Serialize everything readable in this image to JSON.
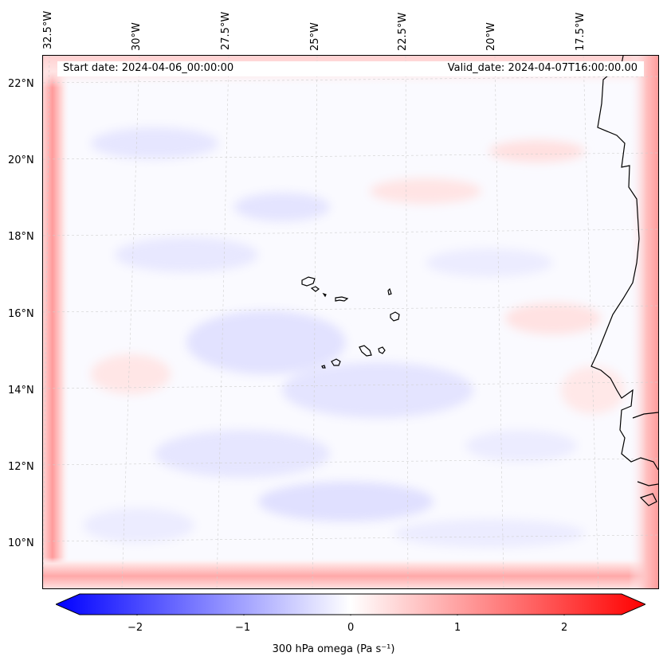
{
  "map": {
    "start_date": "Start date: 2024-04-06_00:00:00",
    "valid_date": "Valid_date: 2024-04-07T16:00:00.00",
    "lon_labels": [
      "32.5°W",
      "30°W",
      "27.5°W",
      "25°W",
      "22.5°W",
      "20°W",
      "17.5°W"
    ],
    "lat_labels": [
      "22°N",
      "20°N",
      "18°N",
      "16°N",
      "14°N",
      "12°N",
      "10°N"
    ],
    "colors": {
      "negative": "#0000ff",
      "neutral": "#ffffff",
      "positive": "#ff0000",
      "coast": "#000000"
    }
  },
  "colorbar": {
    "ticks": [
      "−2",
      "−1",
      "0",
      "1",
      "2"
    ],
    "min": -2.75,
    "max": 2.75,
    "label": "300 hPa omega (Pa s⁻¹)"
  }
}
